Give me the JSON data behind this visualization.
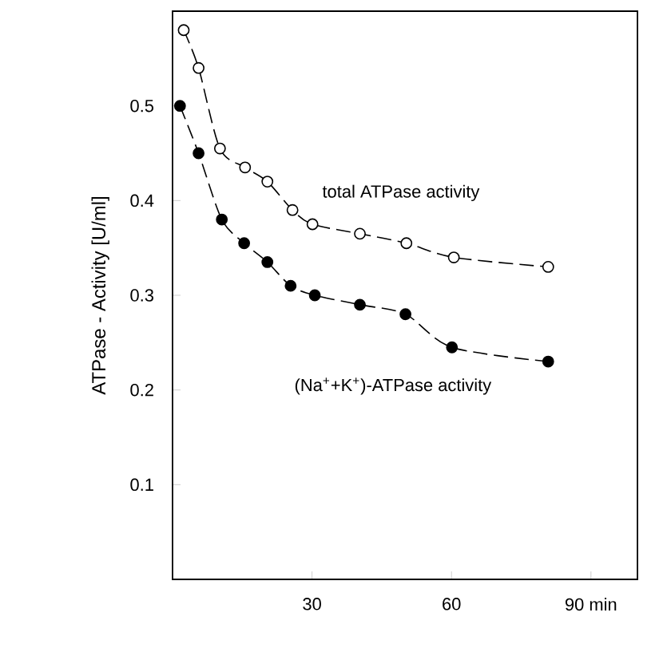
{
  "chart_data": {
    "type": "line",
    "ylabel": "ATPase - Activity [U/ml]",
    "xlim": [
      0,
      100
    ],
    "ylim": [
      0,
      0.6
    ],
    "xticks": [
      30,
      60,
      {
        "value": 90,
        "label": "90 min"
      }
    ],
    "yticks": [
      0.1,
      0.2,
      0.3,
      0.4,
      0.5
    ],
    "marker": "circle",
    "line_style": "dashed",
    "series": [
      {
        "name": "total ATPase activity",
        "color": "#000000",
        "x": [
          2.4,
          5.6,
          10.2,
          15.6,
          20.4,
          25.8,
          30.1,
          40.3,
          50.3,
          60.5,
          80.8
        ],
        "values": [
          0.58,
          0.54,
          0.455,
          0.435,
          0.42,
          0.39,
          0.375,
          0.365,
          0.355,
          0.34,
          0.33
        ]
      },
      {
        "name": "(Na$^{+}$+K$^{+}$)-ATPase activity",
        "color": "#000000",
        "x": [
          1.6,
          5.6,
          10.6,
          15.4,
          20.4,
          25.4,
          30.6,
          40.3,
          50.1,
          60.1,
          80.8
        ],
        "values": [
          0.5,
          0.45,
          0.38,
          0.355,
          0.335,
          0.31,
          0.3,
          0.29,
          0.28,
          0.245,
          0.23
        ]
      }
    ]
  }
}
